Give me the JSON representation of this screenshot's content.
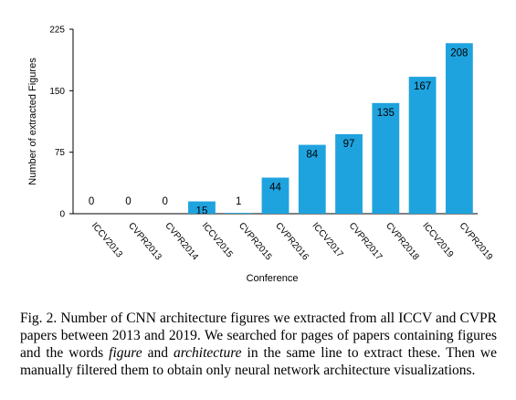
{
  "chart_data": {
    "type": "bar",
    "categories": [
      "ICCV2013",
      "CVPR2013",
      "CVPR2014",
      "ICCV2015",
      "CVPR2015",
      "CVPR2016",
      "ICCV2017",
      "CVPR2017",
      "CVPR2018",
      "ICCV2019",
      "CVPR2019"
    ],
    "values": [
      0,
      0,
      0,
      15,
      1,
      44,
      84,
      97,
      135,
      167,
      208
    ],
    "xlabel": "Conference",
    "ylabel": "Number of extracted Figures",
    "ylim": [
      0,
      225
    ],
    "yticks": [
      0,
      75,
      150,
      225
    ],
    "grid": false,
    "bar_color": "#1fa3de"
  },
  "caption": {
    "part1": "Fig. 2. Number of CNN architecture figures we extracted from all ICCV and CVPR papers between 2013 and 2019. We searched for pages of papers containing figures and the words ",
    "em1": "figure",
    "part2": " and ",
    "em2": "architecture",
    "part3": " in the same line to extract these. Then we manually filtered them to obtain only neural network architecture visualizations."
  }
}
